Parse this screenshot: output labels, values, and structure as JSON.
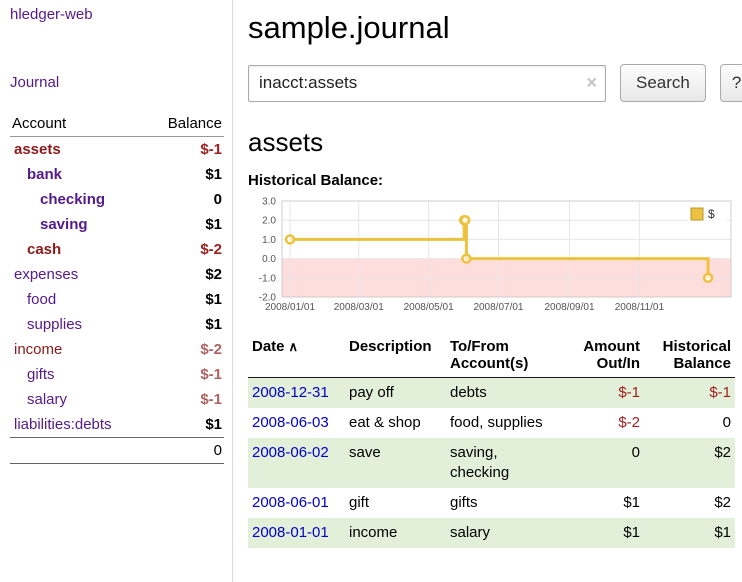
{
  "sidebar": {
    "brand": "hledger-web",
    "journal_link": "Journal",
    "accounts": {
      "col_account": "Account",
      "col_balance": "Balance",
      "rows": [
        {
          "name": "assets",
          "balance": "$-1"
        },
        {
          "name": "bank",
          "balance": "$1"
        },
        {
          "name": "checking",
          "balance": "0"
        },
        {
          "name": "saving",
          "balance": "$1"
        },
        {
          "name": "cash",
          "balance": "$-2"
        },
        {
          "name": "expenses",
          "balance": "$2"
        },
        {
          "name": "food",
          "balance": "$1"
        },
        {
          "name": "supplies",
          "balance": "$1"
        },
        {
          "name": "income",
          "balance": "$-2"
        },
        {
          "name": "gifts",
          "balance": "$-1"
        },
        {
          "name": "salary",
          "balance": "$-1"
        },
        {
          "name": "liabilities:debts",
          "balance": "$1"
        }
      ],
      "total": "0"
    }
  },
  "main": {
    "title": "sample.journal",
    "search": {
      "value": "inacct:assets",
      "clear_icon": "×",
      "search_button": "Search",
      "help_button": "?"
    },
    "account_heading": "assets",
    "chart_title": "Historical Balance:"
  },
  "chart_data": {
    "type": "line",
    "style": "step",
    "title": "Historical Balance",
    "series": [
      {
        "name": "$",
        "points": [
          [
            "2008/01/01",
            1
          ],
          [
            "2008/06/01",
            2
          ],
          [
            "2008/06/02",
            2
          ],
          [
            "2008/06/03",
            0
          ],
          [
            "2008/12/31",
            -1
          ]
        ]
      }
    ],
    "legend": [
      {
        "label": "$",
        "color": "#edc240"
      }
    ],
    "legend_position": "top-right",
    "grid": true,
    "yticks": [
      3.0,
      2.0,
      1.0,
      0.0,
      -1.0,
      -2.0
    ],
    "ylim": [
      -2.0,
      3.0
    ],
    "xticks": [
      "2008/01/01",
      "2008/03/01",
      "2008/05/01",
      "2008/07/01",
      "2008/09/01",
      "2008/11/01"
    ],
    "xlim": [
      "2007/12/25",
      "2009/01/20"
    ],
    "line_color": "#edc240",
    "negative_region_color": "#ffdddd"
  },
  "register": {
    "columns": {
      "date": "Date",
      "sort_icon": "∧",
      "description": "Description",
      "accounts": "To/From\nAccount(s)",
      "amount": "Amount\nOut/In",
      "balance": "Historical\nBalance"
    },
    "rows": [
      {
        "date": "2008-12-31",
        "description": "pay off",
        "accounts": "debts",
        "amount": "$-1",
        "balance": "$-1"
      },
      {
        "date": "2008-06-03",
        "description": "eat & shop",
        "accounts": "food, supplies",
        "amount": "$-2",
        "balance": "0"
      },
      {
        "date": "2008-06-02",
        "description": "save",
        "accounts": "saving, checking",
        "amount": "0",
        "balance": "$2"
      },
      {
        "date": "2008-06-01",
        "description": "gift",
        "accounts": "gifts",
        "amount": "$1",
        "balance": "$2"
      },
      {
        "date": "2008-01-01",
        "description": "income",
        "accounts": "salary",
        "amount": "$1",
        "balance": "$1"
      }
    ]
  },
  "colors": {
    "link_purple": "#551a8b",
    "link_blue": "#0000cc",
    "negative_red": "#a02020",
    "row_stripe_green": "#e2efd9",
    "chart_line": "#edc240",
    "chart_negative_region": "#ffdddd"
  }
}
